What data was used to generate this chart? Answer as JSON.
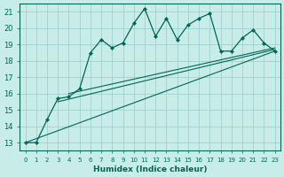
{
  "xlabel": "Humidex (Indice chaleur)",
  "bg_color": "#c8ece8",
  "line_color": "#006655",
  "grid_color": "#99cccc",
  "xlim": [
    -0.5,
    23.5
  ],
  "ylim": [
    12.5,
    21.5
  ],
  "xticks": [
    0,
    1,
    2,
    3,
    4,
    5,
    6,
    7,
    8,
    9,
    10,
    11,
    12,
    13,
    14,
    15,
    16,
    17,
    18,
    19,
    20,
    21,
    22,
    23
  ],
  "yticks": [
    13,
    14,
    15,
    16,
    17,
    18,
    19,
    20,
    21
  ],
  "wavy_x": [
    0,
    1,
    2,
    3,
    4,
    5,
    6,
    7,
    8,
    9,
    10,
    11,
    12,
    13,
    14,
    15,
    16,
    17,
    18,
    19,
    20,
    21,
    22,
    23
  ],
  "wavy_y": [
    13,
    13,
    14.4,
    15.7,
    15.8,
    16.3,
    18.5,
    19.3,
    18.8,
    19.1,
    20.3,
    21.2,
    19.5,
    20.6,
    19.3,
    20.2,
    20.6,
    20.9,
    18.6,
    18.6,
    19.4,
    19.9,
    19.1,
    18.6
  ],
  "line1_x": [
    0,
    23
  ],
  "line1_y": [
    13.0,
    18.6
  ],
  "line2_x": [
    3,
    23
  ],
  "line2_y": [
    15.5,
    18.7
  ],
  "line3_x": [
    4,
    23
  ],
  "line3_y": [
    16.0,
    18.8
  ],
  "xtick_fontsize": 5.0,
  "ytick_fontsize": 6.0,
  "xlabel_fontsize": 6.5
}
